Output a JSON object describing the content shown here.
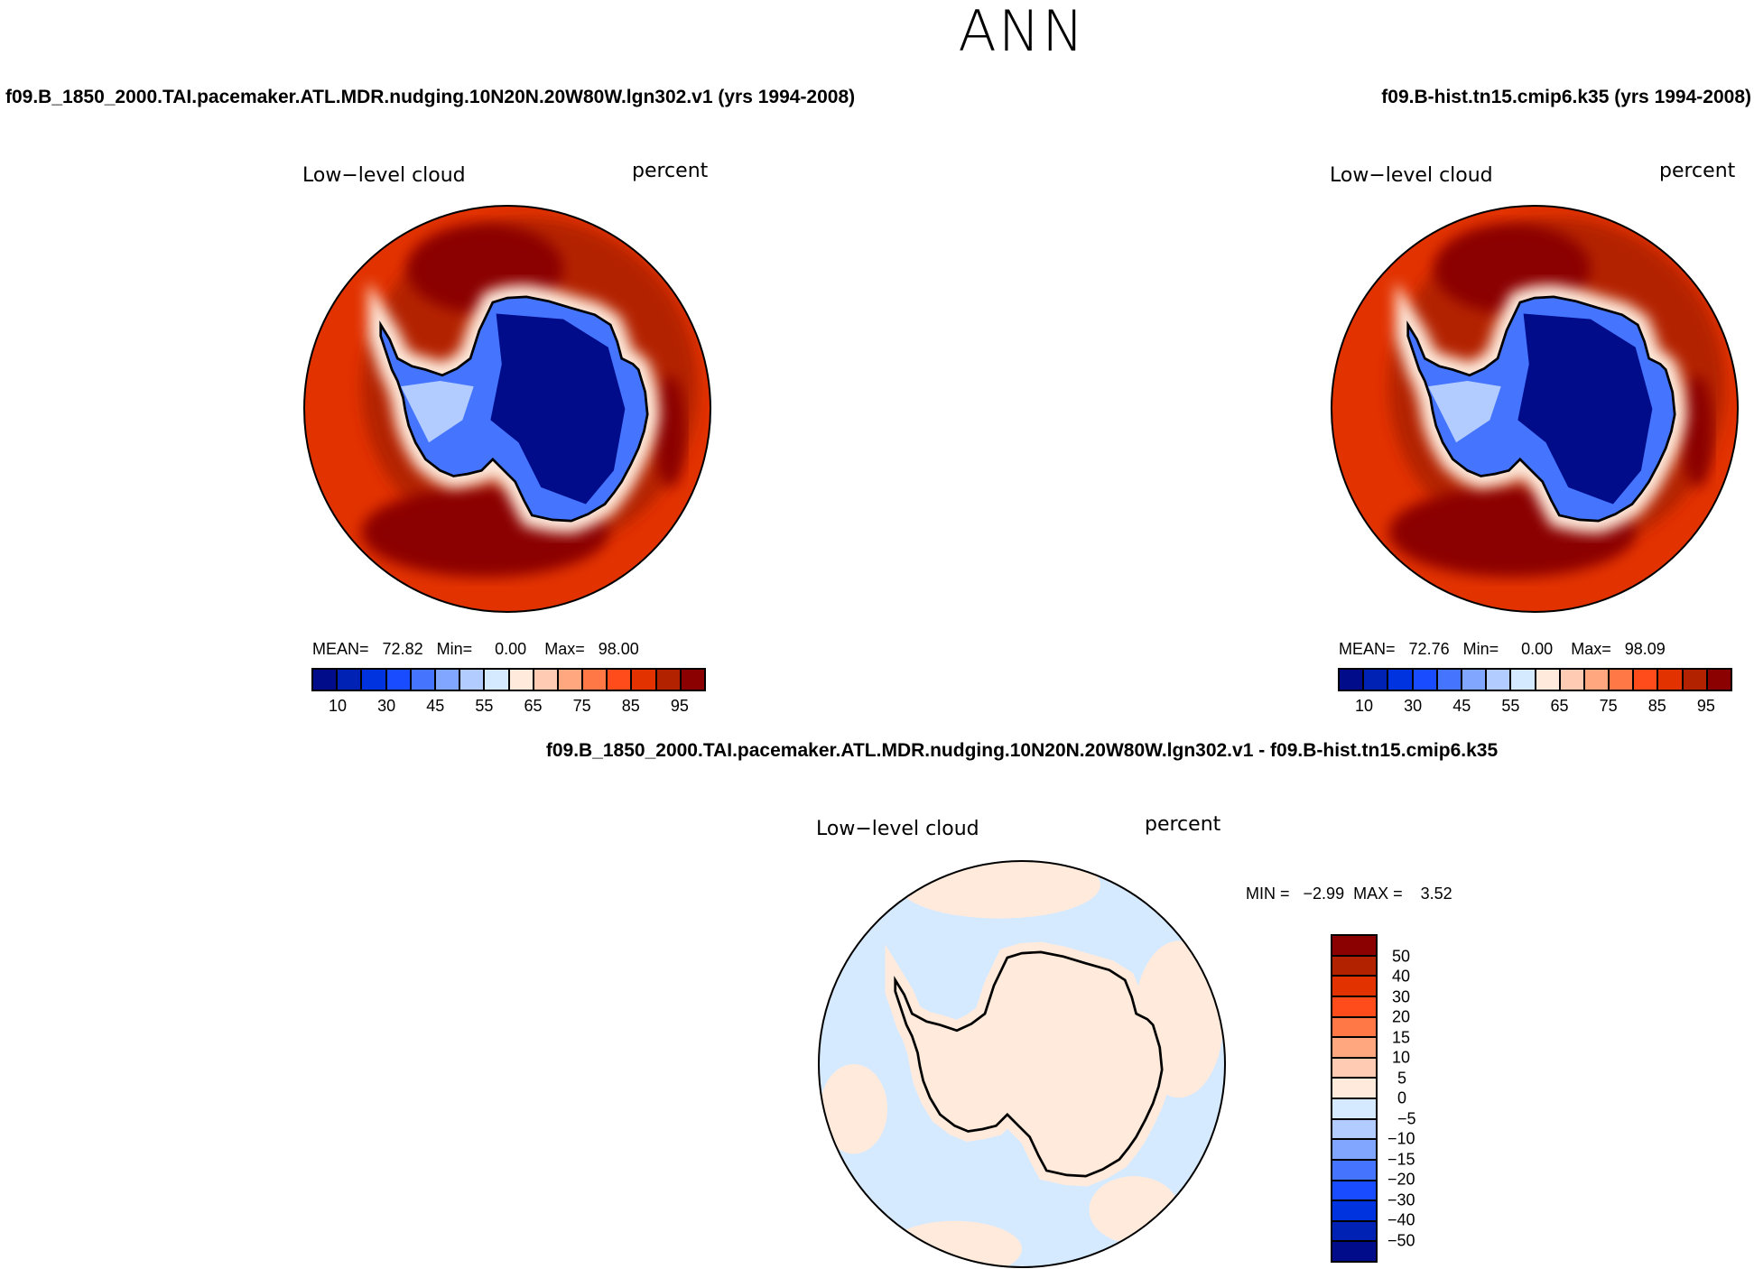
{
  "title": "ANN",
  "panels": {
    "left": {
      "case": "f09.B_1850_2000.TAI.pacemaker.ATL.MDR.nudging.10N20N.20W80W.lgn302.v1 (yrs 1994-2008)",
      "variable": "Low−level cloud",
      "units": "percent",
      "mean_label": "MEAN=",
      "mean": "72.82",
      "min_label": "Min=",
      "min": "0.00",
      "max_label": "Max=",
      "max": "98.00"
    },
    "right": {
      "case": "f09.B-hist.tn15.cmip6.k35 (yrs 1994-2008)",
      "variable": "Low−level cloud",
      "units": "percent",
      "mean_label": "MEAN=",
      "mean": "72.76",
      "min_label": "Min=",
      "min": "0.00",
      "max_label": "Max=",
      "max": "98.09"
    },
    "diff": {
      "case": "f09.B_1850_2000.TAI.pacemaker.ATL.MDR.nudging.10N20N.20W80W.lgn302.v1 - f09.B-hist.tn15.cmip6.k35",
      "variable": "Low−level cloud",
      "units": "percent",
      "min_label": "MIN =",
      "min": "−2.99",
      "max_label": "MAX =",
      "max": "3.52"
    }
  },
  "colorbar_abs": {
    "labels": [
      "10",
      "30",
      "45",
      "55",
      "65",
      "75",
      "85",
      "95"
    ]
  },
  "colorbar_diff": {
    "labels": [
      "50",
      "40",
      "30",
      "20",
      "15",
      "10",
      "5",
      "0",
      "−5",
      "−10",
      "−15",
      "−20",
      "−30",
      "−40",
      "−50"
    ]
  },
  "palette": [
    "#000c8a",
    "#0022b4",
    "#0033e0",
    "#1a4cff",
    "#4575ff",
    "#80a6ff",
    "#b3ccff",
    "#d6eaff",
    "#ffeadb",
    "#ffcbb3",
    "#ffa880",
    "#ff7845",
    "#ff4c1a",
    "#e23200",
    "#b32200",
    "#8b0000"
  ]
}
